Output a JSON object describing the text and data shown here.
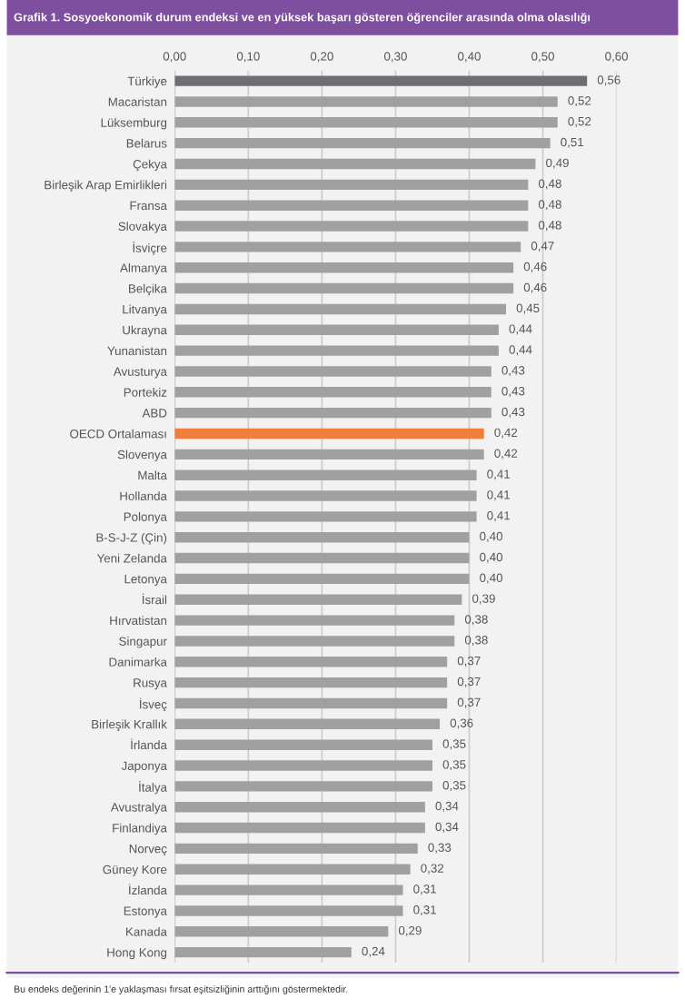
{
  "chart_data": {
    "type": "bar",
    "orientation": "horizontal",
    "title": "Grafik 1. Sosyoekonomik durum endeksi ve en yüksek başarı gösteren öğrenciler arasında olma olasılığı",
    "categories": [
      "Türkiye",
      "Macaristan",
      "Lüksemburg",
      "Belarus",
      "Çekya",
      "Birleşik Arap Emirlikleri",
      "Fransa",
      "Slovakya",
      "İsviçre",
      "Almanya",
      "Belçika",
      "Litvanya",
      "Ukrayna",
      "Yunanistan",
      "Avusturya",
      "Portekiz",
      "ABD",
      "OECD Ortalaması",
      "Slovenya",
      "Malta",
      "Hollanda",
      "Polonya",
      "B-S-J-Z (Çin)",
      "Yeni Zelanda",
      "Letonya",
      "İsrail",
      "Hırvatistan",
      "Singapur",
      "Danimarka",
      "Rusya",
      "İsveç",
      "Birleşik Krallık",
      "İrlanda",
      "Japonya",
      "İtalya",
      "Avustralya",
      "Finlandiya",
      "Norveç",
      "Güney Kore",
      "İzlanda",
      "Estonya",
      "Kanada",
      "Hong Kong"
    ],
    "values": [
      0.56,
      0.52,
      0.52,
      0.51,
      0.49,
      0.48,
      0.48,
      0.48,
      0.47,
      0.46,
      0.46,
      0.45,
      0.44,
      0.44,
      0.43,
      0.43,
      0.43,
      0.42,
      0.42,
      0.41,
      0.41,
      0.41,
      0.4,
      0.4,
      0.4,
      0.39,
      0.38,
      0.38,
      0.37,
      0.37,
      0.37,
      0.36,
      0.35,
      0.35,
      0.35,
      0.34,
      0.34,
      0.33,
      0.32,
      0.31,
      0.31,
      0.29,
      0.24
    ],
    "value_labels": [
      "0,56",
      "0,52",
      "0,52",
      "0,51",
      "0,49",
      "0,48",
      "0,48",
      "0,48",
      "0,47",
      "0,46",
      "0,46",
      "0,45",
      "0,44",
      "0,44",
      "0,43",
      "0,43",
      "0,43",
      "0,42",
      "0,42",
      "0,41",
      "0,41",
      "0,41",
      "0,40",
      "0,40",
      "0,40",
      "0,39",
      "0,38",
      "0,38",
      "0,37",
      "0,37",
      "0,37",
      "0,36",
      "0,35",
      "0,35",
      "0,35",
      "0,34",
      "0,34",
      "0,33",
      "0,32",
      "0,31",
      "0,31",
      "0,29",
      "0,24"
    ],
    "colors": [
      "#6d6e71",
      "#a0a0a0",
      "#a0a0a0",
      "#a0a0a0",
      "#a0a0a0",
      "#a0a0a0",
      "#a0a0a0",
      "#a0a0a0",
      "#a0a0a0",
      "#a0a0a0",
      "#a0a0a0",
      "#a0a0a0",
      "#a0a0a0",
      "#a0a0a0",
      "#a0a0a0",
      "#a0a0a0",
      "#a0a0a0",
      "#f07f3c",
      "#a0a0a0",
      "#a0a0a0",
      "#a0a0a0",
      "#a0a0a0",
      "#a0a0a0",
      "#a0a0a0",
      "#a0a0a0",
      "#a0a0a0",
      "#a0a0a0",
      "#a0a0a0",
      "#a0a0a0",
      "#a0a0a0",
      "#a0a0a0",
      "#a0a0a0",
      "#a0a0a0",
      "#a0a0a0",
      "#a0a0a0",
      "#a0a0a0",
      "#a0a0a0",
      "#a0a0a0",
      "#a0a0a0",
      "#a0a0a0",
      "#a0a0a0",
      "#a0a0a0",
      "#a0a0a0"
    ],
    "xlim": [
      0,
      0.6
    ],
    "xticks": [
      {
        "value": 0,
        "label": "0,00"
      },
      {
        "value": 0.1,
        "label": "0,10"
      },
      {
        "value": 0.2,
        "label": "0,20"
      },
      {
        "value": 0.3,
        "label": "0,30"
      },
      {
        "value": 0.4,
        "label": "0,40"
      },
      {
        "value": 0.5,
        "label": "0,50"
      },
      {
        "value": 0.6,
        "label": "0,60"
      }
    ],
    "grid": "x",
    "annotations": [
      "Bu endeks değerinin 1'e yaklaşması fırsat eşitsizliğinin arttığını göstermektedir."
    ]
  }
}
